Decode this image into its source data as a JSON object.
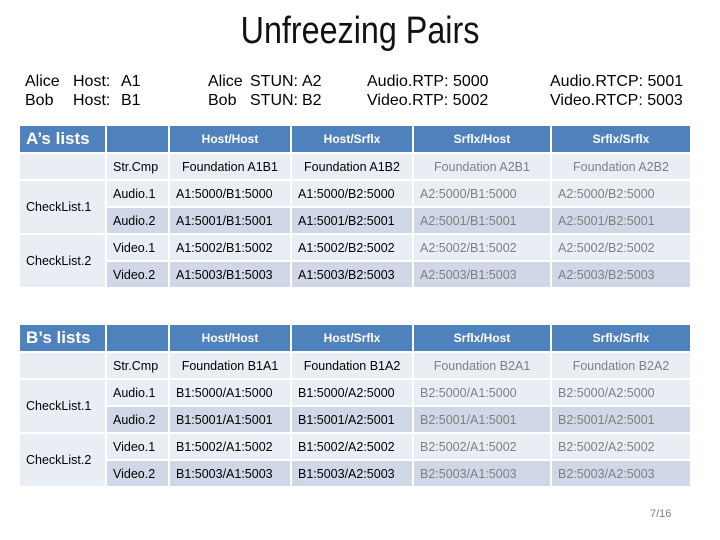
{
  "title": "Unfreezing Pairs",
  "info": [
    [
      {
        "name": "Alice",
        "label": "Host:",
        "value": "A1"
      },
      {
        "name": "Alice",
        "label": "STUN:",
        "value": "A2"
      },
      {
        "text": "Audio.RTP: 5000"
      },
      {
        "text": "Audio.RTCP: 5001"
      }
    ],
    [
      {
        "name": "Bob",
        "label": "Host:",
        "value": "B1"
      },
      {
        "name": "Bob",
        "label": "STUN:",
        "value": "B2"
      },
      {
        "text": "Video.RTP: 5002"
      },
      {
        "text": "Video.RTCP: 5003"
      }
    ]
  ],
  "tables": [
    {
      "title": "A’s lists",
      "columns": [
        "Host/Host",
        "Host/Srflx",
        "Srflx/Host",
        "Srflx/Srflx"
      ],
      "component_row": {
        "label": "Str.Cmp",
        "cells": [
          "Foundation A1B1",
          "Foundation A1B2",
          "Foundation A2B1",
          "Foundation A2B2"
        ]
      },
      "groups": [
        {
          "name": "CheckList.1",
          "rows": [
            {
              "label": "Audio.1",
              "cells": [
                "A1:5000/B1:5000",
                "A1:5000/B2:5000",
                "A2:5000/B1:5000",
                "A2:5000/B2:5000"
              ]
            },
            {
              "label": "Audio.2",
              "cells": [
                "A1:5001/B1:5001",
                "A1:5001/B2:5001",
                "A2:5001/B1:5001",
                "A2:5001/B2:5001"
              ]
            }
          ]
        },
        {
          "name": "CheckList.2",
          "rows": [
            {
              "label": "Video.1",
              "cells": [
                "A1:5002/B1:5002",
                "A1:5002/B2:5002",
                "A2:5002/B1:5002",
                "A2:5002/B2:5002"
              ]
            },
            {
              "label": "Video.2",
              "cells": [
                "A1:5003/B1:5003",
                "A1:5003/B2:5003",
                "A2:5003/B1:5003",
                "A2:5003/B2:5003"
              ]
            }
          ]
        }
      ]
    },
    {
      "title": "B’s lists",
      "columns": [
        "Host/Host",
        "Host/Srflx",
        "Srflx/Host",
        "Srflx/Srflx"
      ],
      "component_row": {
        "label": "Str.Cmp",
        "cells": [
          "Foundation B1A1",
          "Foundation B1A2",
          "Foundation B2A1",
          "Foundation B2A2"
        ]
      },
      "groups": [
        {
          "name": "CheckList.1",
          "rows": [
            {
              "label": "Audio.1",
              "cells": [
                "B1:5000/A1:5000",
                "B1:5000/A2:5000",
                "B2:5000/A1:5000",
                "B2:5000/A2:5000"
              ]
            },
            {
              "label": "Audio.2",
              "cells": [
                "B1:5001/A1:5001",
                "B1:5001/A2:5001",
                "B2:5001/A1:5001",
                "B2:5001/A2:5001"
              ]
            }
          ]
        },
        {
          "name": "CheckList.2",
          "rows": [
            {
              "label": "Video.1",
              "cells": [
                "B1:5002/A1:5002",
                "B1:5002/A2:5002",
                "B2:5002/A1:5002",
                "B2:5002/A2:5002"
              ]
            },
            {
              "label": "Video.2",
              "cells": [
                "B1:5003/A1:5003",
                "B1:5003/A2:5003",
                "B2:5003/A1:5003",
                "B2:5003/A2:5003"
              ]
            }
          ]
        }
      ]
    }
  ],
  "page_number": "7/16"
}
